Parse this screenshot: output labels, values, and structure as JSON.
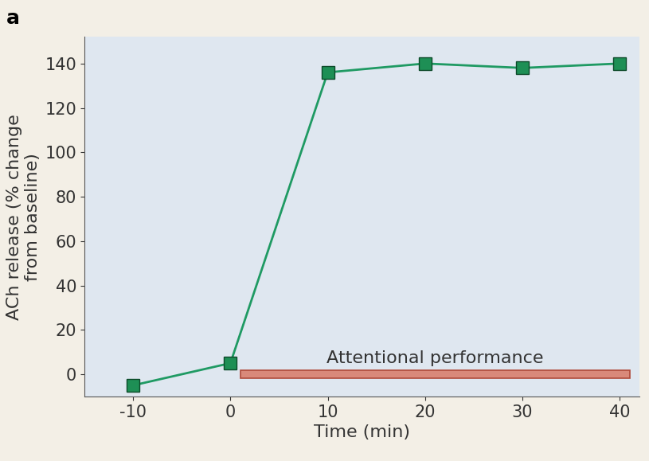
{
  "chart_data": {
    "type": "line",
    "title": "a",
    "x_label": "Time (min)",
    "y_label": "ACh release (% change\nfrom baseline)",
    "annotations": [
      "Attentional performance"
    ],
    "x": [
      -10,
      0,
      10,
      20,
      30,
      40
    ],
    "series": [
      {
        "name": "ACh release",
        "color": "#1f9a63",
        "marker": "square",
        "line_style": "solid",
        "values": [
          -5,
          5,
          136,
          140,
          138,
          140
        ]
      }
    ],
    "xlim": [
      -15,
      42
    ],
    "ylim": [
      -10,
      152
    ],
    "xticks": [
      -10,
      0,
      10,
      20,
      30,
      40
    ],
    "yticks": [
      0,
      20,
      40,
      60,
      80,
      100,
      120,
      140
    ],
    "grid": false
  }
}
